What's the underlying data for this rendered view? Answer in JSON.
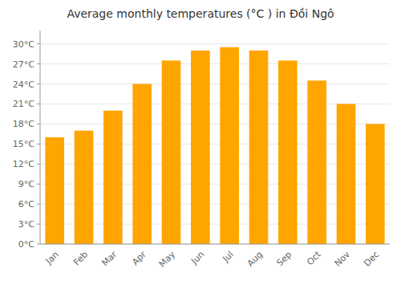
{
  "chart_data": {
    "type": "bar",
    "title": "Average monthly temperatures (°C ) in Đồi Ngô",
    "categories": [
      "Jan",
      "Feb",
      "Mar",
      "Apr",
      "May",
      "Jun",
      "Jul",
      "Aug",
      "Sep",
      "Oct",
      "Nov",
      "Dec"
    ],
    "values": [
      16.0,
      17.0,
      20.0,
      24.0,
      27.5,
      29.0,
      29.5,
      29.0,
      27.5,
      24.5,
      21.0,
      18.0
    ],
    "color": "#FFA500",
    "ylim": [
      0,
      32
    ],
    "yticks": [
      {
        "value": 0,
        "label": "0°C"
      },
      {
        "value": 3,
        "label": "3°C"
      },
      {
        "value": 6,
        "label": "6°C"
      },
      {
        "value": 9,
        "label": "9°C"
      },
      {
        "value": 12,
        "label": "12°C"
      },
      {
        "value": 15,
        "label": "15°C"
      },
      {
        "value": 18,
        "label": "18°C"
      },
      {
        "value": 21,
        "label": "21°C"
      },
      {
        "value": 24,
        "label": "24°C"
      },
      {
        "value": 27,
        "label": "27°C"
      },
      {
        "value": 30,
        "label": "30°C"
      }
    ],
    "grid": true
  }
}
